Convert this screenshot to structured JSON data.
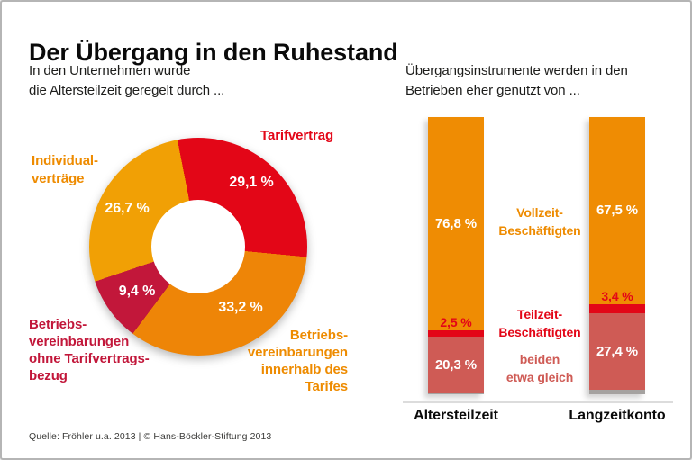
{
  "title": "Der Übergang in den Ruhestand",
  "footer": "Quelle: Fröhler u.a. 2013 | © Hans-Böckler-Stiftung 2013",
  "colors": {
    "red": "#E30617",
    "carmine": "#C2173A",
    "orange": "#EE8507",
    "orange_light": "#F1A005",
    "orange_label": "#EE8B00",
    "bar_orange": "#EF8C03",
    "salmon": "#CF5B55",
    "gray_rest": "#A5A2A0",
    "baseline": "#DCDCDC",
    "white": "#FFFFFF"
  },
  "left_chart": {
    "subtitle": "In den Unternehmen wurde\ndie Altersteilzeit geregelt durch ..."
  },
  "right_chart": {
    "subtitle": "Übergangsinstrumente werden in den\nBetrieben eher genutzt von ..."
  },
  "chart_data": [
    {
      "type": "pie",
      "subtype": "donut",
      "title": "In den Unternehmen wurde die Altersteilzeit geregelt durch ...",
      "unit": "%",
      "start_angle_deg": -11,
      "legend_position": "around",
      "segments": [
        {
          "label": "Tarifvertrag",
          "label_display": "Tarifvertrag",
          "value": 29.1,
          "display": "29,1 %",
          "color": "#E30617",
          "label_color": "#E30617"
        },
        {
          "label": "Betriebsvereinbarungen innerhalb des Tarifes",
          "label_display": "Betriebs-\nvereinbarungen\ninnerhalb des\nTarifes",
          "value": 33.2,
          "display": "33,2 %",
          "color": "#EE8507",
          "label_color": "#EE8B00"
        },
        {
          "label": "Betriebsvereinbarungen ohne Tarifvertragsbezug",
          "label_display": "Betriebs-\nvereinbarungen\nohne Tarifvertrags-\nbezug",
          "value": 9.4,
          "display": "9,4 %",
          "color": "#C2173A",
          "label_color": "#C2173A"
        },
        {
          "label": "Individualverträge",
          "label_display": "Individual-\nverträge",
          "value": 26.7,
          "display": "26,7 %",
          "color": "#F1A005",
          "label_color": "#EE8B00"
        }
      ]
    },
    {
      "type": "bar",
      "subtype": "stacked-100",
      "title": "Übergangsinstrumente werden in den Betrieben eher genutzt von ...",
      "unit": "%",
      "ylim": [
        0,
        100
      ],
      "grid": false,
      "legend_position": "center-between-bars",
      "categories": [
        "Altersteilzeit",
        "Langzeitkonto"
      ],
      "series": [
        {
          "name": "Vollzeit-Beschäftigten",
          "name_display": "Vollzeit-\nBeschäftigten",
          "color": "#EF8C03",
          "label_color": "#EE8B00",
          "values": [
            76.8,
            67.5
          ],
          "displays": [
            "76,8 %",
            "67,5 %"
          ]
        },
        {
          "name": "Teilzeit-Beschäftigten",
          "name_display": "Teilzeit-\nBeschäftigten",
          "color": "#E30617",
          "label_color": "#E30617",
          "values": [
            2.5,
            3.4
          ],
          "displays": [
            "2,5 %",
            "3,4 %"
          ]
        },
        {
          "name": "beiden etwa gleich",
          "name_display": "beiden\netwa gleich",
          "color": "#CF5B55",
          "label_color": "#CF5B55",
          "values": [
            20.3,
            27.4
          ],
          "displays": [
            "20,3 %",
            "27,4 %"
          ]
        },
        {
          "name": "unbeschriftet (Rest)",
          "name_display": "",
          "color": "#A5A2A0",
          "label_color": "#A5A2A0",
          "values": [
            0.4,
            1.7
          ],
          "displays": [
            "",
            ""
          ]
        }
      ]
    }
  ]
}
